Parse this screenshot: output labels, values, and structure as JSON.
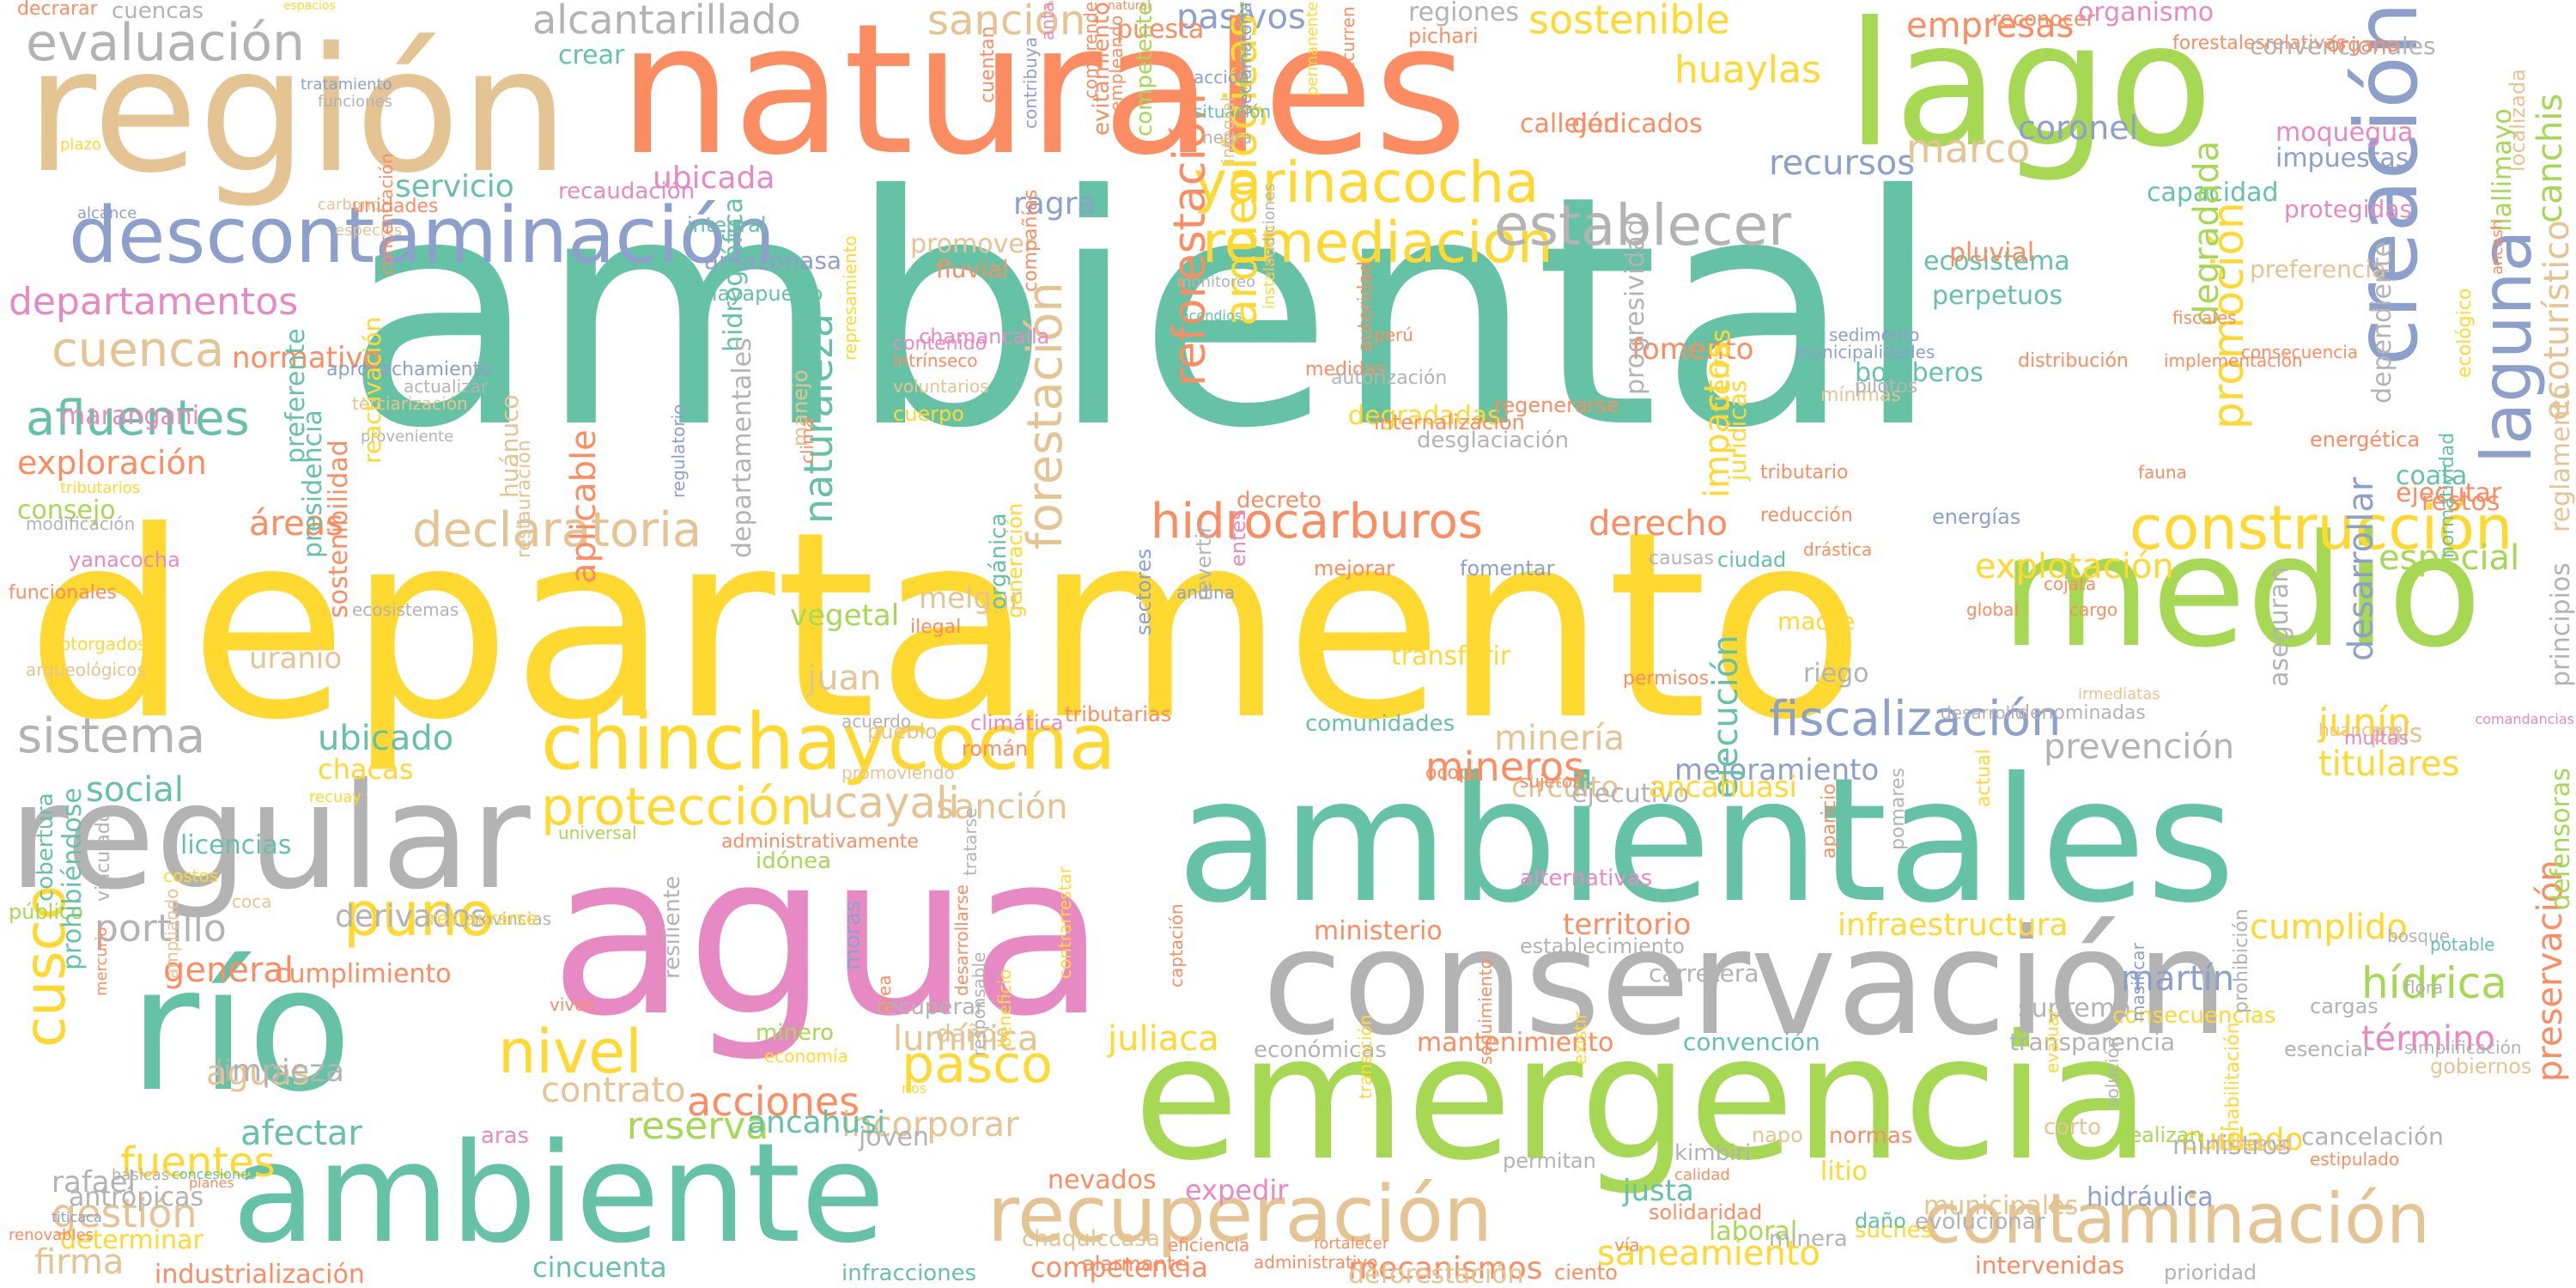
{
  "palette": {
    "teal": "#66c2a5",
    "orange": "#fc8d62",
    "blue": "#8da0cb",
    "pink": "#e78ac3",
    "green": "#a6d854",
    "yellow": "#ffd92f",
    "tan": "#e5c494",
    "gray": "#b3b3b3"
  },
  "words": [
    "ambiental",
    "departamento",
    "agua",
    "ambientales",
    "emergencia",
    "conservación",
    "naturales",
    "región",
    "lago",
    "medio",
    "río",
    "ambiente",
    "regular",
    "descontaminación",
    "creación",
    "chinchaycocha",
    "recuperación",
    "contaminación",
    "hidrocarburos",
    "construcción",
    "declaratoria",
    "fiscalización",
    "yarinacocha",
    "remediación",
    "establecer",
    "protección",
    "forestación",
    "sistema",
    "cuenca",
    "afluentes",
    "departamentos",
    "evaluación",
    "alcantarillado",
    "sanción",
    "pasivos",
    "sostenible",
    "empresas",
    "huaylas",
    "recursos",
    "coronel",
    "marco",
    "laguna",
    "puno",
    "cusco",
    "pasco",
    "nivel",
    "acciones",
    "reserva",
    "fuentes",
    "gestión",
    "firma",
    "ucayali",
    "derecho",
    "explotación",
    "especial",
    "junín",
    "titulares",
    "hídrica",
    "término",
    "cumplido",
    "territorio",
    "infraestructura",
    "ministerio",
    "saneamiento",
    "mecanismos",
    "competencia",
    "contrato",
    "afectar",
    "ubicada",
    "ecosistema",
    "fomento",
    "bomberos",
    "arqueológicas",
    "reforestación",
    "naturaleza",
    "promoción",
    "desarrollar",
    "exploración",
    "áreas",
    "consejo",
    "minería",
    "mineros",
    "mejoramiento",
    "ejecución",
    "impactos",
    "juan",
    "vegetal",
    "melgar",
    "sanción",
    "incorporar",
    "lumínica",
    "juliaca",
    "general",
    "portillo",
    "derivados",
    "cumplimiento",
    "aguas",
    "social",
    "ubicado",
    "chacas",
    "uranio",
    "normativo",
    "aplicable",
    "servicio",
    "marangani",
    "ragra",
    "promover",
    "degradadas",
    "pluvial",
    "perpetuos",
    "coata",
    "país",
    "prevención",
    "circuito",
    "ejecutivo",
    "ancahuasi",
    "comunidades",
    "transferir",
    "riego",
    "madre",
    "carretera",
    "martín",
    "supremo",
    "convención",
    "mantenimiento",
    "económicas",
    "cuidado",
    "ministros",
    "hidráulica",
    "municipales",
    "laboral",
    "justa",
    "kimbiri",
    "napo",
    "permitan",
    "normas",
    "expedir",
    "litio",
    "suches",
    "nevados",
    "chaqulccasa",
    "joven",
    "ancahusi",
    "aras",
    "limpieza",
    "rafael",
    "antrópicas",
    "determinar",
    "industrialización",
    "cincuenta",
    "infracciones",
    "intervenidas",
    "prioridad",
    "evolucionar",
    "cancelación",
    "esencial",
    "consecuencias",
    "transparencia",
    "preservación",
    "defensoras",
    "ecoturístico",
    "llallimayo",
    "canchis",
    "moquegua",
    "impuestas",
    "protegidas",
    "capacidad",
    "preferencia",
    "degradada",
    "dependiente",
    "restos",
    "ejecutar",
    "reglamento",
    "principios",
    "regiones",
    "pichari",
    "reconocer",
    "organismo",
    "forestalesrelativas",
    "convencionales",
    "órgano",
    "callejón",
    "dedicados",
    "crear",
    "puesta",
    "decrarar",
    "cuencas",
    "espacios",
    "natural",
    "acción",
    "situación",
    "negra",
    "funciones",
    "plazo",
    "alcance",
    "carbono",
    "especies",
    "unidades",
    "recaudación",
    "integral",
    "amazonasa",
    "atalayapuerto",
    "fluvial",
    "evitamiento",
    "competente",
    "desglaciación",
    "progresividad",
    "tierras",
    "jurídicas",
    "regulatorio",
    "preferente",
    "arqueológicos",
    "yanacocha",
    "presidencia",
    "otorgados",
    "ecosistemas",
    "costos",
    "licencias",
    "público",
    "coca",
    "recuay",
    "universal",
    "administrativamente",
    "idónea",
    "provincias",
    "restaurarse",
    "recuperar",
    "vivos",
    "daños",
    "minero",
    "economía",
    "ríos",
    "básicas",
    "concesiones",
    "planes",
    "titicaca",
    "renovables",
    "eficiencia",
    "fortalecer",
    "administrativo",
    "alarmante",
    "deforestación",
    "ciento",
    "corto",
    "forestal",
    "realizan",
    "vía",
    "solidaridad",
    "calidad",
    "minera",
    "daño",
    "desarrollo",
    "denominadas",
    "irmediatas",
    "huancane",
    "multas",
    "comandancias",
    "bosque",
    "flora",
    "potable",
    "cargas",
    "simplificación",
    "gobiernos",
    "estipulado",
    "rehabilitación",
    "prohibición",
    "masificar",
    "evaluar",
    "solución",
    "aseguran",
    "actual",
    "pomares",
    "aparicio",
    "alternativas",
    "establecimiento",
    "sujetos",
    "ocopa",
    "cojata",
    "cargo",
    "global",
    "reducción",
    "energías",
    "drástica",
    "ciudad",
    "fomentar",
    "mejorar",
    "decreto",
    "internalización",
    "regenerarse",
    "tributario",
    "fauna",
    "energética",
    "consecuencia",
    "fiscales",
    "sedimento",
    "distribución",
    "implementación",
    "municipalidades",
    "mínimas",
    "pilotos",
    "causas",
    "permisos",
    "andina",
    "entes",
    "revertir",
    "sectores",
    "tributarias",
    "climática",
    "román",
    "promoviendo",
    "pueblo",
    "acuerdo",
    "ilegal",
    "orgánica",
    "generación",
    "manejo",
    "clima",
    "voluntarios",
    "cuerpo",
    "represamiento",
    "contenido",
    "intrínseco",
    "chamancalla",
    "compañías",
    "monitoreo",
    "incendios",
    "instalación",
    "perú",
    "medidas",
    "autorización",
    "autoridad",
    "restauración",
    "terciarización",
    "modificación",
    "proveniente",
    "aprovechamiento",
    "tributarios",
    "sostenibilidad",
    "reactivación",
    "huánuco",
    "hidrográfica",
    "departamentales",
    "funcionales",
    "cobertura",
    "vinculado",
    "prohibiéndose",
    "mercurio",
    "ampliando",
    "tratarse",
    "desarrollarse",
    "resiliente",
    "moras",
    "área",
    "contrarrestar",
    "responsable",
    "beneficio",
    "captación",
    "transición",
    "seguimiento",
    "existir",
    "comprende",
    "empleando",
    "incurren",
    "permanente",
    "naturalmente",
    "cuentan",
    "anta",
    "contribuya",
    "declamatoria",
    "integral",
    "actualizar",
    "tratamiento",
    "concentración",
    "condiciones",
    "localizada",
    "ancash",
    "ecológico",
    "normatividad"
  ]
}
